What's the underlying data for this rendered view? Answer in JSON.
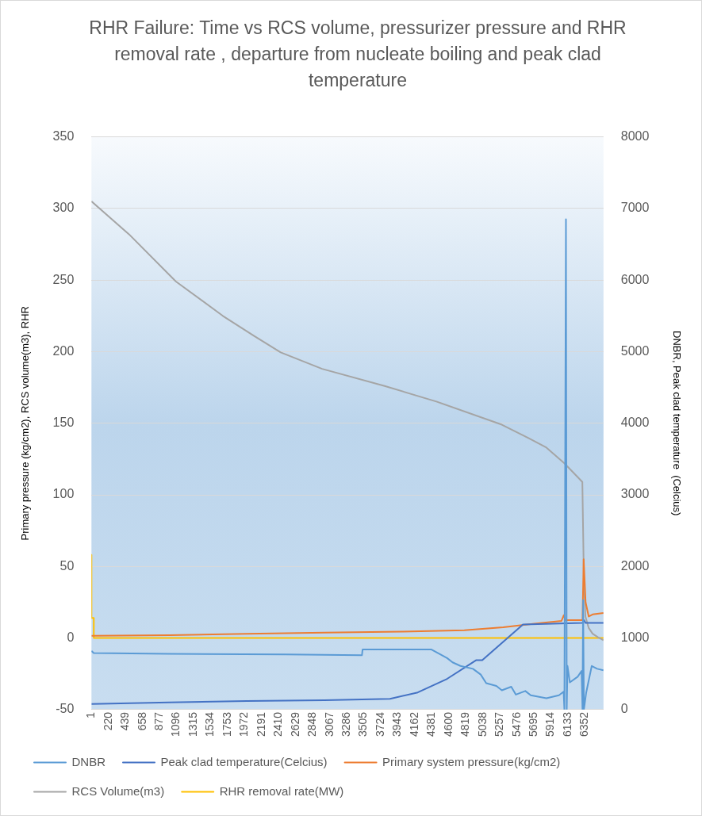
{
  "chart_data": {
    "type": "line",
    "title": "RHR Failure: Time vs RCS volume, pressurizer pressure and RHR removal rate , departure from nucleate boiling and peak clad temperature",
    "ylabel": "Primary pressure (kg/cm2), RCS volume(m3), RHR",
    "y2label": "DNBR, Peak clad temperature  (Celcius)",
    "xlim": [
      1,
      6590
    ],
    "xticks": [
      1,
      220,
      439,
      658,
      877,
      1096,
      1315,
      1534,
      1753,
      1972,
      2191,
      2410,
      2629,
      2848,
      3067,
      3286,
      3505,
      3724,
      3943,
      4162,
      4381,
      4600,
      4819,
      5038,
      5257,
      5476,
      5695,
      5914,
      6133,
      6352
    ],
    "ylim": [
      -50,
      350
    ],
    "yticks": [
      -50,
      0,
      50,
      100,
      150,
      200,
      250,
      300,
      350
    ],
    "y2lim": [
      0,
      8000
    ],
    "y2ticks": [
      0,
      1000,
      2000,
      3000,
      4000,
      5000,
      6000,
      7000,
      8000
    ],
    "grid": "y",
    "legend": "bottom",
    "marker": "none",
    "line_style": "solid",
    "series": [
      {
        "name": "Primary system pressure(kg/cm2)",
        "color": "#ed7d31",
        "x": [
          1,
          1000,
          2000,
          3000,
          4000,
          4800,
          5300,
          5700,
          6050,
          6080,
          6100,
          6320,
          6335,
          6360,
          6400,
          6450,
          6590
        ],
        "values": [
          1.5,
          2,
          3,
          3.8,
          4.5,
          5.5,
          7.5,
          10,
          12,
          16,
          12.5,
          12.5,
          55,
          25,
          15,
          16.5,
          17.5
        ]
      },
      {
        "name": "RCS Volume(m3)",
        "color": "#a5a5a5",
        "x": [
          1,
          484,
          1088,
          1691,
          2094,
          2436,
          2969,
          3774,
          4448,
          5282,
          5614,
          5856,
          6087,
          6318,
          6338,
          6358,
          6400,
          6450,
          6520,
          6590
        ],
        "values": [
          305,
          282,
          249,
          225,
          211,
          199.5,
          188,
          176,
          165,
          149,
          140,
          133,
          122,
          109,
          40,
          15,
          7,
          3,
          0.5,
          -1.5
        ]
      },
      {
        "name": "RHR removal rate(MW)",
        "color": "#ffc000",
        "x": [
          1,
          1,
          31,
          31,
          6590
        ],
        "values": [
          58,
          14,
          14,
          0,
          0
        ]
      },
      {
        "name": "DNBR",
        "color": "#5b9bd5",
        "axis": "y2",
        "x": [
          1,
          30,
          1000,
          2500,
          3482,
          3490,
          4377,
          4578,
          4648,
          4749,
          4910,
          5010,
          5081,
          5212,
          5282,
          5403,
          5463,
          5584,
          5654,
          5856,
          6017,
          6077,
          6087,
          6107,
          6117,
          6127,
          6157,
          6258,
          6308,
          6320,
          6328,
          6338,
          6368,
          6439,
          6509,
          6590
        ],
        "values": [
          820,
          790,
          780,
          770,
          760,
          840,
          840,
          720,
          660,
          610,
          570,
          490,
          370,
          330,
          270,
          320,
          210,
          260,
          200,
          160,
          200,
          250,
          0,
          6850,
          0,
          610,
          380,
          460,
          540,
          0,
          1530,
          0,
          240,
          610,
          570,
          550
        ]
      },
      {
        "name": "Peak clad temperature(Celcius)",
        "color": "#4472c4",
        "axis": "y2",
        "x": [
          1,
          1000,
          2000,
          3000,
          3843,
          4200,
          4578,
          4950,
          5030,
          5554,
          6318,
          6338,
          6360,
          6590
        ],
        "values": [
          80,
          100,
          120,
          130,
          150,
          240,
          430,
          690,
          690,
          1190,
          1210,
          1250,
          1210,
          1210
        ]
      }
    ]
  }
}
